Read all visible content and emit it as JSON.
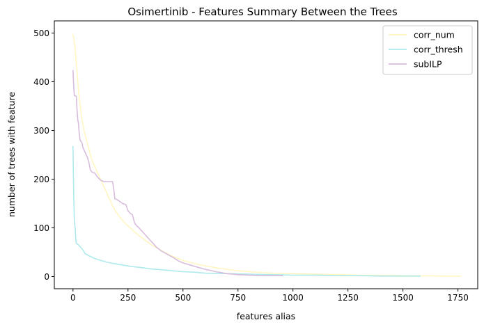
{
  "chart_data": {
    "type": "line",
    "title": "Osimertinib - Features Summary Between the Trees",
    "xlabel": "features alias",
    "ylabel": "number of trees with feature",
    "xlim": [
      -85,
      1840
    ],
    "ylim": [
      -25,
      525
    ],
    "xticks": [
      0,
      250,
      500,
      750,
      1000,
      1250,
      1500,
      1750
    ],
    "yticks": [
      0,
      100,
      200,
      300,
      400,
      500
    ],
    "grid": false,
    "legend": "top-right",
    "series": [
      {
        "name": "corr_num",
        "color": "#fff6c2",
        "points": [
          [
            0,
            498
          ],
          [
            5,
            485
          ],
          [
            10,
            465
          ],
          [
            15,
            440
          ],
          [
            20,
            410
          ],
          [
            25,
            385
          ],
          [
            30,
            360
          ],
          [
            40,
            325
          ],
          [
            50,
            300
          ],
          [
            60,
            282
          ],
          [
            70,
            265
          ],
          [
            80,
            248
          ],
          [
            90,
            235
          ],
          [
            100,
            225
          ],
          [
            120,
            205
          ],
          [
            140,
            185
          ],
          [
            160,
            165
          ],
          [
            180,
            145
          ],
          [
            200,
            130
          ],
          [
            220,
            118
          ],
          [
            240,
            108
          ],
          [
            260,
            100
          ],
          [
            280,
            92
          ],
          [
            300,
            84
          ],
          [
            330,
            74
          ],
          [
            360,
            64
          ],
          [
            400,
            54
          ],
          [
            450,
            42
          ],
          [
            500,
            33
          ],
          [
            550,
            27
          ],
          [
            600,
            22
          ],
          [
            650,
            18
          ],
          [
            700,
            15
          ],
          [
            750,
            12
          ],
          [
            800,
            10
          ],
          [
            900,
            7
          ],
          [
            1000,
            6
          ],
          [
            1100,
            5
          ],
          [
            1200,
            4
          ],
          [
            1300,
            3
          ],
          [
            1500,
            2
          ],
          [
            1700,
            1
          ],
          [
            1765,
            1
          ]
        ]
      },
      {
        "name": "corr_thresh",
        "color": "#aeeaec",
        "points": [
          [
            0,
            268
          ],
          [
            2,
            200
          ],
          [
            4,
            150
          ],
          [
            6,
            120
          ],
          [
            8,
            105
          ],
          [
            10,
            100
          ],
          [
            12,
            80
          ],
          [
            15,
            68
          ],
          [
            25,
            65
          ],
          [
            35,
            60
          ],
          [
            45,
            55
          ],
          [
            55,
            47
          ],
          [
            70,
            43
          ],
          [
            85,
            40
          ],
          [
            100,
            37
          ],
          [
            120,
            34
          ],
          [
            150,
            30
          ],
          [
            180,
            27
          ],
          [
            220,
            24
          ],
          [
            260,
            21
          ],
          [
            300,
            19
          ],
          [
            350,
            16
          ],
          [
            400,
            14
          ],
          [
            450,
            12
          ],
          [
            500,
            10
          ],
          [
            550,
            9
          ],
          [
            600,
            7
          ],
          [
            700,
            6
          ],
          [
            800,
            5
          ],
          [
            900,
            4
          ],
          [
            1000,
            3
          ],
          [
            1100,
            3
          ],
          [
            1200,
            2
          ],
          [
            1300,
            2
          ],
          [
            1400,
            1
          ],
          [
            1500,
            1
          ],
          [
            1580,
            1
          ]
        ]
      },
      {
        "name": "subILP",
        "color": "#d8bcdc",
        "points": [
          [
            0,
            424
          ],
          [
            2,
            400
          ],
          [
            4,
            385
          ],
          [
            6,
            372
          ],
          [
            15,
            370
          ],
          [
            18,
            345
          ],
          [
            22,
            320
          ],
          [
            25,
            315
          ],
          [
            28,
            295
          ],
          [
            32,
            280
          ],
          [
            40,
            275
          ],
          [
            45,
            265
          ],
          [
            55,
            255
          ],
          [
            65,
            245
          ],
          [
            72,
            235
          ],
          [
            78,
            220
          ],
          [
            85,
            215
          ],
          [
            100,
            212
          ],
          [
            110,
            205
          ],
          [
            125,
            198
          ],
          [
            140,
            195
          ],
          [
            180,
            195
          ],
          [
            185,
            180
          ],
          [
            190,
            160
          ],
          [
            200,
            158
          ],
          [
            210,
            155
          ],
          [
            225,
            150
          ],
          [
            240,
            148
          ],
          [
            250,
            135
          ],
          [
            260,
            130
          ],
          [
            270,
            127
          ],
          [
            280,
            110
          ],
          [
            290,
            104
          ],
          [
            300,
            100
          ],
          [
            320,
            90
          ],
          [
            340,
            80
          ],
          [
            360,
            70
          ],
          [
            380,
            60
          ],
          [
            400,
            53
          ],
          [
            420,
            48
          ],
          [
            440,
            43
          ],
          [
            460,
            38
          ],
          [
            480,
            32
          ],
          [
            500,
            28
          ],
          [
            530,
            24
          ],
          [
            560,
            20
          ],
          [
            600,
            15
          ],
          [
            650,
            10
          ],
          [
            700,
            6
          ],
          [
            750,
            4
          ],
          [
            800,
            3
          ],
          [
            850,
            2
          ],
          [
            900,
            2
          ],
          [
            955,
            2
          ]
        ]
      }
    ]
  }
}
